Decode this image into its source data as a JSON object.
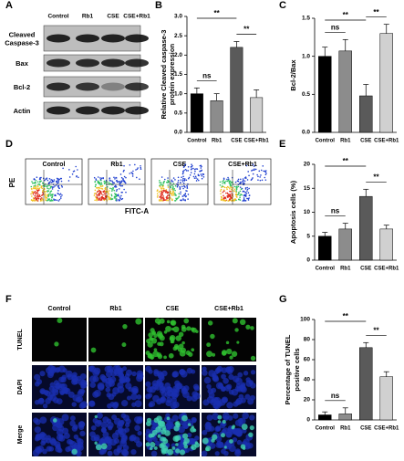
{
  "panel_labels": [
    "A",
    "B",
    "C",
    "D",
    "E",
    "F",
    "G"
  ],
  "western_blot": {
    "columns": [
      "Control",
      "Rb1",
      "CSE",
      "CSE+Rb1"
    ],
    "rows": [
      [
        "Cleaved",
        "Caspase-3"
      ],
      [
        "Bax"
      ],
      [
        "Bcl-2"
      ],
      [
        "Actin"
      ]
    ]
  },
  "flow_cytometry": {
    "titles": [
      "Control",
      "Rb1",
      "CSE",
      "CSE+Rb1"
    ],
    "ylabel": "PE",
    "xlabel": "FITC-A"
  },
  "tunel": {
    "columns": [
      "Control",
      "Rb1",
      "CSE",
      "CSE+Rb1"
    ],
    "rows": [
      "TUNEL",
      "DAPI",
      "Merge"
    ]
  },
  "chart_data": [
    {
      "type": "bar",
      "ylabel": [
        "Relative Cleaved caspase-3",
        "protein expression"
      ],
      "categories": [
        "Control",
        "Rb1",
        "CSE",
        "CSE+Rb1"
      ],
      "values": [
        1.0,
        0.82,
        2.2,
        0.9
      ],
      "errors": [
        0.15,
        0.18,
        0.15,
        0.2
      ],
      "colors": [
        "#000000",
        "#8c8c8c",
        "#5a5a5a",
        "#d0d0d0"
      ],
      "ylim": [
        0,
        3
      ],
      "yticks": [
        {
          "value": 0,
          "label": "0.0"
        },
        0.5,
        {
          "value": 1,
          "label": "1.0"
        },
        1.5,
        {
          "value": 2,
          "label": "2.0"
        },
        2.5,
        {
          "value": 3,
          "label": "3.0"
        }
      ],
      "annotations": [
        "ns",
        "**",
        "**"
      ]
    },
    {
      "type": "bar",
      "ylabel": [
        "Bcl-2/Bax"
      ],
      "categories": [
        "Control",
        "Rb1",
        "CSE",
        "CSE+Rb1"
      ],
      "values": [
        1.0,
        1.07,
        0.48,
        1.3
      ],
      "errors": [
        0.12,
        0.15,
        0.15,
        0.12
      ],
      "colors": [
        "#000000",
        "#8c8c8c",
        "#5a5a5a",
        "#d0d0d0"
      ],
      "ylim": [
        0,
        1.5
      ],
      "yticks": [
        {
          "value": 0,
          "label": "0.0"
        },
        0.5,
        {
          "value": 1,
          "label": "1.0"
        },
        1.5
      ],
      "annotations": [
        "ns",
        "**",
        "**"
      ]
    },
    {
      "type": "bar",
      "ylabel": [
        "Apoptosis cells (%)"
      ],
      "categories": [
        "Control",
        "Rb1",
        "CSE",
        "CSE+Rb1"
      ],
      "values": [
        5.0,
        6.5,
        13.3,
        6.5
      ],
      "errors": [
        0.8,
        1.2,
        1.5,
        0.8
      ],
      "colors": [
        "#000000",
        "#8c8c8c",
        "#5a5a5a",
        "#d0d0d0"
      ],
      "ylim": [
        0,
        20
      ],
      "yticks": [
        0,
        5,
        10,
        15,
        20
      ],
      "annotations": [
        "ns",
        "**",
        "**"
      ]
    },
    {
      "type": "bar",
      "ylabel": [
        "Percentage of TUNEL",
        "positive cells"
      ],
      "categories": [
        "Control",
        "Rb1",
        "CSE",
        "CSE+Rb1"
      ],
      "values": [
        5,
        6,
        72,
        43
      ],
      "errors": [
        3,
        6,
        5,
        5
      ],
      "colors": [
        "#000000",
        "#8c8c8c",
        "#5a5a5a",
        "#d0d0d0"
      ],
      "ylim": [
        0,
        100
      ],
      "yticks": [
        0,
        20,
        40,
        60,
        80,
        100
      ],
      "annotations": [
        "ns",
        "**",
        "**"
      ]
    }
  ]
}
